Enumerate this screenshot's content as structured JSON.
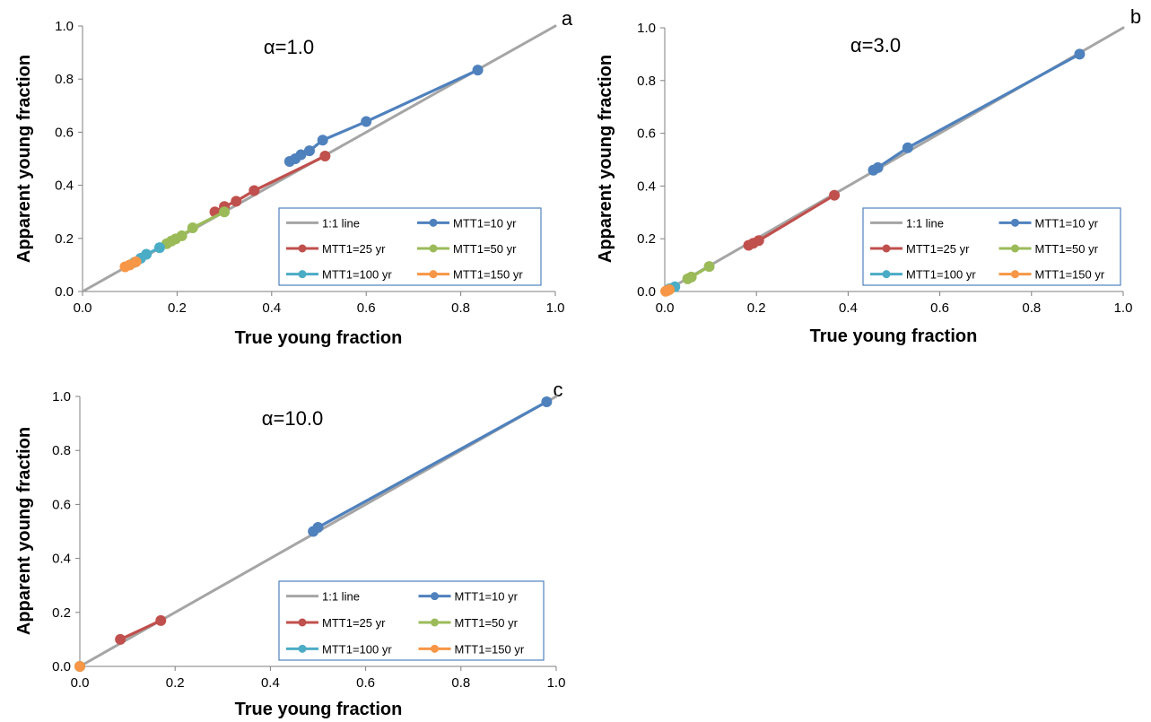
{
  "chart_data": [
    {
      "type": "line",
      "panel": "a",
      "annotation": "α=1.0",
      "xlabel": "True young fraction",
      "ylabel": "Apparent young fraction",
      "xlim": [
        0,
        1
      ],
      "ylim": [
        0,
        1
      ],
      "xticks": [
        "0.0",
        "0.2",
        "0.4",
        "0.6",
        "0.8",
        "1.0"
      ],
      "yticks": [
        "0.0",
        "0.2",
        "0.4",
        "0.6",
        "0.8",
        "1.0"
      ],
      "grid": false,
      "legend_position": "bottom-right",
      "series": [
        {
          "name": "1:1 line",
          "color": "#a5a5a5",
          "markers": false,
          "points": [
            [
              0,
              0
            ],
            [
              1,
              1
            ]
          ]
        },
        {
          "name": "MTT1=10 yr",
          "color": "#4f81bd",
          "markers": true,
          "points": [
            [
              0.438,
              0.49
            ],
            [
              0.45,
              0.5
            ],
            [
              0.462,
              0.515
            ],
            [
              0.48,
              0.53
            ],
            [
              0.508,
              0.57
            ],
            [
              0.6,
              0.64
            ],
            [
              0.836,
              0.834
            ]
          ]
        },
        {
          "name": "MTT1=25 yr",
          "color": "#c0504d",
          "markers": true,
          "points": [
            [
              0.28,
              0.3
            ],
            [
              0.3,
              0.32
            ],
            [
              0.325,
              0.34
            ],
            [
              0.363,
              0.38
            ],
            [
              0.513,
              0.51
            ]
          ]
        },
        {
          "name": "MTT1=50 yr",
          "color": "#9bbb59",
          "markers": true,
          "points": [
            [
              0.178,
              0.18
            ],
            [
              0.188,
              0.19
            ],
            [
              0.197,
              0.198
            ],
            [
              0.21,
              0.21
            ],
            [
              0.233,
              0.24
            ],
            [
              0.3,
              0.3
            ]
          ]
        },
        {
          "name": "MTT1=100 yr",
          "color": "#4bacc6",
          "markers": true,
          "points": [
            [
              0.11,
              0.11
            ],
            [
              0.123,
              0.125
            ],
            [
              0.135,
              0.14
            ],
            [
              0.163,
              0.165
            ]
          ]
        },
        {
          "name": "MTT1=150 yr",
          "color": "#f79646",
          "markers": true,
          "points": [
            [
              0.09,
              0.093
            ],
            [
              0.1,
              0.1
            ],
            [
              0.113,
              0.112
            ]
          ]
        }
      ]
    },
    {
      "type": "line",
      "panel": "b",
      "annotation": "α=3.0",
      "xlabel": "True young fraction",
      "ylabel": "Apparent young fraction",
      "xlim": [
        0,
        1
      ],
      "ylim": [
        0,
        1
      ],
      "xticks": [
        "0.0",
        "0.2",
        "0.4",
        "0.6",
        "0.8",
        "1.0"
      ],
      "yticks": [
        "0.0",
        "0.2",
        "0.4",
        "0.6",
        "0.8",
        "1.0"
      ],
      "grid": false,
      "legend_position": "bottom-right",
      "series": [
        {
          "name": "1:1 line",
          "color": "#a5a5a5",
          "markers": false,
          "points": [
            [
              0,
              0
            ],
            [
              1,
              1
            ]
          ]
        },
        {
          "name": "MTT1=10 yr",
          "color": "#4f81bd",
          "markers": true,
          "points": [
            [
              0.455,
              0.46
            ],
            [
              0.465,
              0.47
            ],
            [
              0.53,
              0.545
            ],
            [
              0.905,
              0.9
            ]
          ]
        },
        {
          "name": "MTT1=25 yr",
          "color": "#c0504d",
          "markers": true,
          "points": [
            [
              0.183,
              0.175
            ],
            [
              0.193,
              0.183
            ],
            [
              0.205,
              0.193
            ],
            [
              0.37,
              0.365
            ]
          ]
        },
        {
          "name": "MTT1=50 yr",
          "color": "#9bbb59",
          "markers": true,
          "points": [
            [
              0.05,
              0.048
            ],
            [
              0.058,
              0.055
            ],
            [
              0.097,
              0.095
            ]
          ]
        },
        {
          "name": "MTT1=100 yr",
          "color": "#4bacc6",
          "markers": true,
          "points": [
            [
              0.01,
              0.01
            ],
            [
              0.022,
              0.018
            ]
          ]
        },
        {
          "name": "MTT1=150 yr",
          "color": "#f79646",
          "markers": true,
          "points": [
            [
              0.002,
              0.001
            ],
            [
              0.006,
              0.004
            ],
            [
              0.01,
              0.007
            ]
          ]
        }
      ]
    },
    {
      "type": "line",
      "panel": "c",
      "annotation": "α=10.0",
      "xlabel": "True young fraction",
      "ylabel": "Apparent young fraction",
      "xlim": [
        0,
        1
      ],
      "ylim": [
        0,
        1
      ],
      "xticks": [
        "0.0",
        "0.2",
        "0.4",
        "0.6",
        "0.8",
        "1.0"
      ],
      "yticks": [
        "0.0",
        "0.2",
        "0.4",
        "0.6",
        "0.8",
        "1.0"
      ],
      "grid": false,
      "legend_position": "bottom-right",
      "series": [
        {
          "name": "1:1 line",
          "color": "#a5a5a5",
          "markers": false,
          "points": [
            [
              0,
              0
            ],
            [
              1,
              1
            ]
          ]
        },
        {
          "name": "MTT1=10 yr",
          "color": "#4f81bd",
          "markers": true,
          "points": [
            [
              0.49,
              0.5
            ],
            [
              0.5,
              0.515
            ],
            [
              0.98,
              0.98
            ]
          ]
        },
        {
          "name": "MTT1=25 yr",
          "color": "#c0504d",
          "markers": true,
          "points": [
            [
              0.085,
              0.1
            ],
            [
              0.17,
              0.17
            ]
          ]
        },
        {
          "name": "MTT1=50 yr",
          "color": "#9bbb59",
          "markers": true,
          "points": [
            [
              0.0,
              0.0
            ]
          ]
        },
        {
          "name": "MTT1=100 yr",
          "color": "#4bacc6",
          "markers": true,
          "points": [
            [
              0.0,
              0.0
            ]
          ]
        },
        {
          "name": "MTT1=150 yr",
          "color": "#f79646",
          "markers": true,
          "points": [
            [
              0.0,
              0.0
            ]
          ]
        }
      ]
    }
  ]
}
